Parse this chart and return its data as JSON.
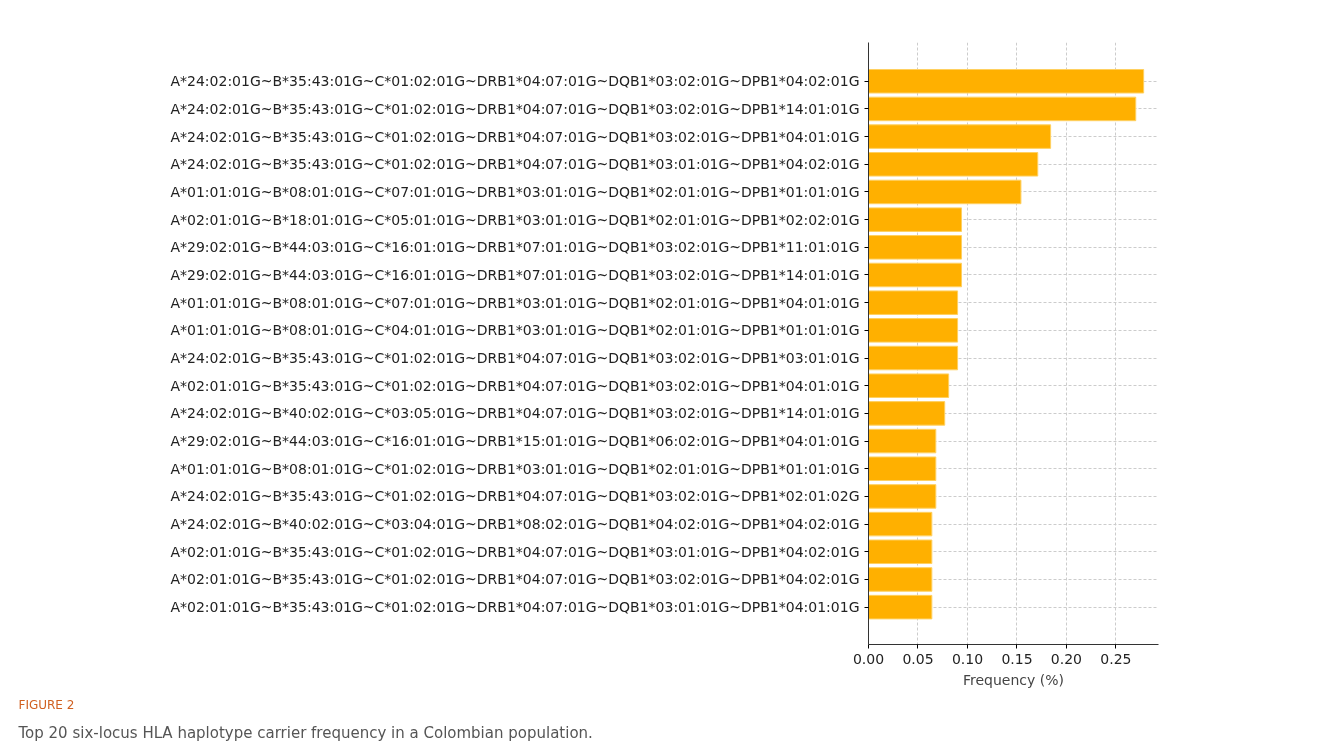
{
  "chart_data": {
    "type": "bar",
    "orientation": "horizontal",
    "categories": [
      "A*24:02:01G~B*35:43:01G~C*01:02:01G~DRB1*04:07:01G~DQB1*03:02:01G~DPB1*04:02:01G",
      "A*24:02:01G~B*35:43:01G~C*01:02:01G~DRB1*04:07:01G~DQB1*03:02:01G~DPB1*14:01:01G",
      "A*24:02:01G~B*35:43:01G~C*01:02:01G~DRB1*04:07:01G~DQB1*03:02:01G~DPB1*04:01:01G",
      "A*24:02:01G~B*35:43:01G~C*01:02:01G~DRB1*04:07:01G~DQB1*03:01:01G~DPB1*04:02:01G",
      "A*01:01:01G~B*08:01:01G~C*07:01:01G~DRB1*03:01:01G~DQB1*02:01:01G~DPB1*01:01:01G",
      "A*02:01:01G~B*18:01:01G~C*05:01:01G~DRB1*03:01:01G~DQB1*02:01:01G~DPB1*02:02:01G",
      "A*29:02:01G~B*44:03:01G~C*16:01:01G~DRB1*07:01:01G~DQB1*03:02:01G~DPB1*11:01:01G",
      "A*29:02:01G~B*44:03:01G~C*16:01:01G~DRB1*07:01:01G~DQB1*03:02:01G~DPB1*14:01:01G",
      "A*01:01:01G~B*08:01:01G~C*07:01:01G~DRB1*03:01:01G~DQB1*02:01:01G~DPB1*04:01:01G",
      "A*01:01:01G~B*08:01:01G~C*04:01:01G~DRB1*03:01:01G~DQB1*02:01:01G~DPB1*01:01:01G",
      "A*24:02:01G~B*35:43:01G~C*01:02:01G~DRB1*04:07:01G~DQB1*03:02:01G~DPB1*03:01:01G",
      "A*02:01:01G~B*35:43:01G~C*01:02:01G~DRB1*04:07:01G~DQB1*03:02:01G~DPB1*04:01:01G",
      "A*24:02:01G~B*40:02:01G~C*03:05:01G~DRB1*04:07:01G~DQB1*03:02:01G~DPB1*14:01:01G",
      "A*29:02:01G~B*44:03:01G~C*16:01:01G~DRB1*15:01:01G~DQB1*06:02:01G~DPB1*04:01:01G",
      "A*01:01:01G~B*08:01:01G~C*01:02:01G~DRB1*03:01:01G~DQB1*02:01:01G~DPB1*01:01:01G",
      "A*24:02:01G~B*35:43:01G~C*01:02:01G~DRB1*04:07:01G~DQB1*03:02:01G~DPB1*02:01:02G",
      "A*24:02:01G~B*40:02:01G~C*03:04:01G~DRB1*08:02:01G~DQB1*04:02:01G~DPB1*04:02:01G",
      "A*02:01:01G~B*35:43:01G~C*01:02:01G~DRB1*04:07:01G~DQB1*03:01:01G~DPB1*04:02:01G",
      "A*02:01:01G~B*35:43:01G~C*01:02:01G~DRB1*04:07:01G~DQB1*03:02:01G~DPB1*04:02:01G",
      "A*02:01:01G~B*35:43:01G~C*01:02:01G~DRB1*04:07:01G~DQB1*03:01:01G~DPB1*04:01:01G"
    ],
    "values": [
      0.278,
      0.27,
      0.184,
      0.171,
      0.154,
      0.094,
      0.094,
      0.094,
      0.09,
      0.09,
      0.09,
      0.081,
      0.077,
      0.068,
      0.068,
      0.068,
      0.064,
      0.064,
      0.064,
      0.064
    ],
    "color": "#ffb000",
    "xlabel": "Frequency (%)",
    "xlim": [
      0,
      0.293
    ],
    "xticks": [
      {
        "value": 0,
        "label": "0.00"
      },
      {
        "value": 0.05,
        "label": "0.05"
      },
      {
        "value": 0.1,
        "label": "0.10"
      },
      {
        "value": 0.15,
        "label": "0.15"
      },
      {
        "value": 0.2,
        "label": "0.20"
      },
      {
        "value": 0.25,
        "label": "0.25"
      }
    ],
    "grid": true,
    "annotations": [
      "FIGURE 2",
      "Top 20 six-locus HLA haplotype carrier frequency in a Colombian population."
    ]
  }
}
